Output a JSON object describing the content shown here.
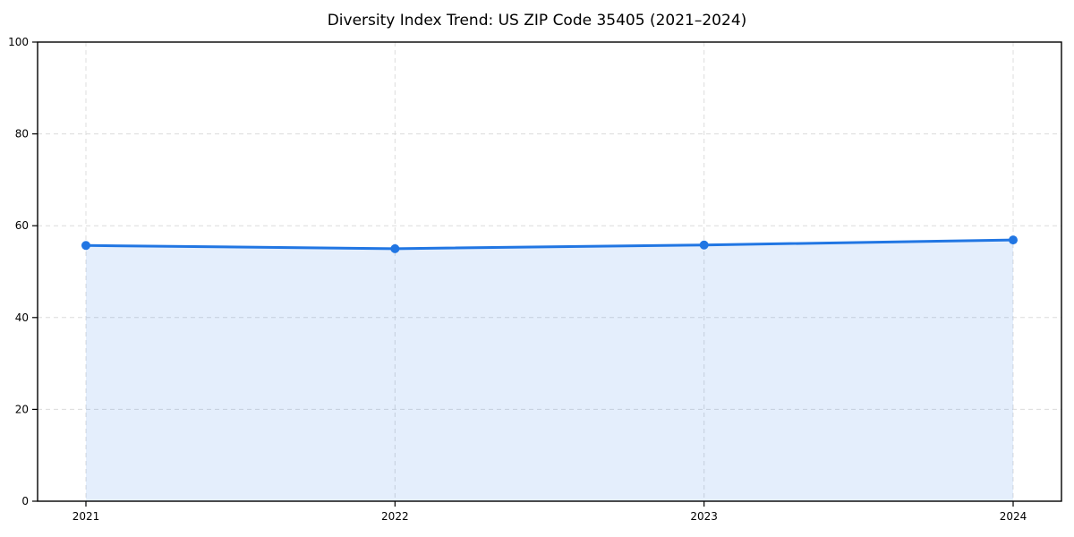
{
  "chart_data": {
    "type": "area",
    "title": "Diversity Index Trend: US ZIP Code 35405 (2021–2024)",
    "categories": [
      "2021",
      "2022",
      "2023",
      "2024"
    ],
    "series": [
      {
        "name": "Diversity Index",
        "values": [
          55.7,
          55.0,
          55.8,
          56.9
        ]
      }
    ],
    "xlabel": "",
    "ylabel": "",
    "ylim": [
      0,
      100
    ],
    "yticks": [
      0,
      20,
      40,
      60,
      80,
      100
    ],
    "grid": true,
    "grid_style": "dashed",
    "legend_position": "none",
    "colors": {
      "line": "#2176e3",
      "marker": "#2176e3",
      "fill": "#2176e3",
      "fill_opacity": 0.12,
      "grid": "#dcdcdc",
      "spine": "#000000",
      "tick_text": "#000000",
      "title_text": "#000000",
      "background": "#ffffff"
    }
  }
}
